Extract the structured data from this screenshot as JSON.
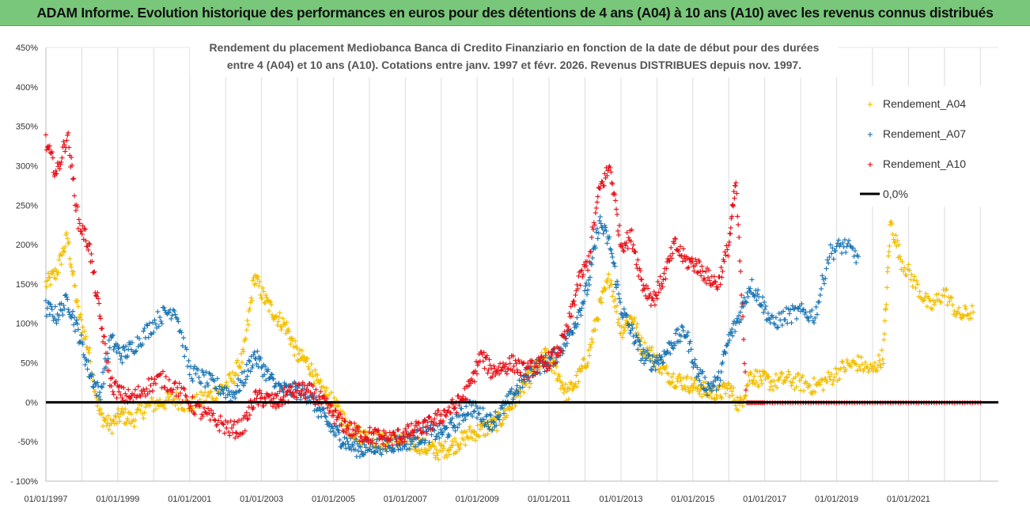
{
  "banner": {
    "title": "ADAM Informe. Evolution historique des performances en euros pour des détentions de 4 ans (A04) à 10 ans (A10) avec les revenus connus distribués"
  },
  "chart_data": {
    "type": "scatter",
    "subtitle_lines": [
      "Rendement du placement Mediobanca Banca di Credito Finanziario en fonction de la date de début pour des durées",
      "entre 4 (A04) et 10 ans (A10). Cotations entre janv. 1997 et févr. 2026. Revenus DISTRIBUES depuis nov. 1997."
    ],
    "x_tick_labels": [
      "01/01/1997",
      "01/01/1999",
      "01/01/2001",
      "01/01/2003",
      "01/01/2005",
      "01/01/2007",
      "01/01/2009",
      "01/01/2011",
      "01/01/2013",
      "01/01/2015",
      "01/01/2017",
      "01/01/2019",
      "01/01/2021"
    ],
    "x_range": [
      1997.0,
      2023.5
    ],
    "x_tick_years": [
      1997,
      1999,
      2001,
      2003,
      2005,
      2007,
      2009,
      2011,
      2013,
      2015,
      2017,
      2019,
      2021
    ],
    "y_tick_labels": [
      "450%",
      "400%",
      "350%",
      "300%",
      "250%",
      "200%",
      "150%",
      "100%",
      "50%",
      "0%",
      "-50%",
      "- 100%"
    ],
    "y_tick_values": [
      450,
      400,
      350,
      300,
      250,
      200,
      150,
      100,
      50,
      0,
      -50,
      -100
    ],
    "ylim": [
      -100,
      450
    ],
    "grid": "vertical yearly",
    "legend_position": "top-right",
    "marker_glyph": "+",
    "series": [
      {
        "name": "Rendement_A04",
        "color": "#f2be00",
        "points": [
          [
            1997.0,
            150
          ],
          [
            1997.3,
            165
          ],
          [
            1997.6,
            210
          ],
          [
            1997.9,
            115
          ],
          [
            1998.2,
            65
          ],
          [
            1998.5,
            -15
          ],
          [
            1998.8,
            -30
          ],
          [
            1999.1,
            -15
          ],
          [
            1999.4,
            -22
          ],
          [
            1999.8,
            -5
          ],
          [
            2000.2,
            0
          ],
          [
            2000.6,
            5
          ],
          [
            2001.0,
            -5
          ],
          [
            2001.4,
            5
          ],
          [
            2001.8,
            15
          ],
          [
            2002.2,
            30
          ],
          [
            2002.5,
            60
          ],
          [
            2002.8,
            160
          ],
          [
            2003.1,
            130
          ],
          [
            2003.4,
            110
          ],
          [
            2003.7,
            95
          ],
          [
            2004.0,
            60
          ],
          [
            2004.3,
            50
          ],
          [
            2004.6,
            20
          ],
          [
            2004.9,
            5
          ],
          [
            2005.2,
            -15
          ],
          [
            2005.5,
            -35
          ],
          [
            2005.8,
            -42
          ],
          [
            2006.1,
            -45
          ],
          [
            2006.4,
            -50
          ],
          [
            2006.7,
            -48
          ],
          [
            2007.0,
            -50
          ],
          [
            2007.3,
            -52
          ],
          [
            2007.6,
            -58
          ],
          [
            2007.9,
            -62
          ],
          [
            2008.2,
            -58
          ],
          [
            2008.5,
            -50
          ],
          [
            2008.8,
            -40
          ],
          [
            2009.1,
            -35
          ],
          [
            2009.4,
            -30
          ],
          [
            2009.7,
            -20
          ],
          [
            2010.0,
            0
          ],
          [
            2010.3,
            20
          ],
          [
            2010.6,
            40
          ],
          [
            2010.9,
            60
          ],
          [
            2011.2,
            40
          ],
          [
            2011.5,
            10
          ],
          [
            2011.8,
            30
          ],
          [
            2012.1,
            60
          ],
          [
            2012.4,
            120
          ],
          [
            2012.7,
            160
          ],
          [
            2013.0,
            90
          ],
          [
            2013.3,
            110
          ],
          [
            2013.6,
            70
          ],
          [
            2013.9,
            60
          ],
          [
            2014.2,
            40
          ],
          [
            2014.5,
            30
          ],
          [
            2014.8,
            25
          ],
          [
            2015.1,
            20
          ],
          [
            2015.4,
            15
          ],
          [
            2015.7,
            10
          ],
          [
            2016.0,
            20
          ],
          [
            2016.3,
            -5
          ],
          [
            2016.6,
            35
          ],
          [
            2016.9,
            30
          ],
          [
            2017.2,
            25
          ],
          [
            2017.6,
            30
          ],
          [
            2018.0,
            25
          ],
          [
            2018.4,
            20
          ],
          [
            2018.8,
            30
          ],
          [
            2019.2,
            45
          ],
          [
            2019.6,
            50
          ],
          [
            2020.0,
            40
          ],
          [
            2020.3,
            60
          ],
          [
            2020.5,
            230
          ],
          [
            2020.8,
            180
          ],
          [
            2021.2,
            150
          ],
          [
            2021.6,
            120
          ],
          [
            2022.0,
            140
          ],
          [
            2022.4,
            110
          ],
          [
            2022.8,
            115
          ]
        ]
      },
      {
        "name": "Rendement_A07",
        "color": "#1f77b4",
        "points": [
          [
            1997.0,
            120
          ],
          [
            1997.3,
            110
          ],
          [
            1997.6,
            130
          ],
          [
            1997.9,
            90
          ],
          [
            1998.2,
            40
          ],
          [
            1998.5,
            10
          ],
          [
            1998.8,
            80
          ],
          [
            1999.1,
            60
          ],
          [
            1999.4,
            70
          ],
          [
            1999.8,
            90
          ],
          [
            2000.2,
            110
          ],
          [
            2000.6,
            120
          ],
          [
            2001.0,
            40
          ],
          [
            2001.4,
            30
          ],
          [
            2001.8,
            20
          ],
          [
            2002.2,
            10
          ],
          [
            2002.5,
            30
          ],
          [
            2002.8,
            60
          ],
          [
            2003.1,
            40
          ],
          [
            2003.4,
            20
          ],
          [
            2003.7,
            15
          ],
          [
            2004.0,
            15
          ],
          [
            2004.3,
            10
          ],
          [
            2004.6,
            -10
          ],
          [
            2004.9,
            -30
          ],
          [
            2005.2,
            -45
          ],
          [
            2005.5,
            -55
          ],
          [
            2005.8,
            -60
          ],
          [
            2006.1,
            -55
          ],
          [
            2006.4,
            -55
          ],
          [
            2006.7,
            -52
          ],
          [
            2007.0,
            -50
          ],
          [
            2007.3,
            -45
          ],
          [
            2007.6,
            -40
          ],
          [
            2007.9,
            -38
          ],
          [
            2008.2,
            -35
          ],
          [
            2008.5,
            -20
          ],
          [
            2008.8,
            -5
          ],
          [
            2009.1,
            -15
          ],
          [
            2009.4,
            -25
          ],
          [
            2009.7,
            -10
          ],
          [
            2010.0,
            10
          ],
          [
            2010.3,
            30
          ],
          [
            2010.6,
            45
          ],
          [
            2010.9,
            50
          ],
          [
            2011.2,
            60
          ],
          [
            2011.5,
            80
          ],
          [
            2011.8,
            110
          ],
          [
            2012.1,
            150
          ],
          [
            2012.4,
            230
          ],
          [
            2012.7,
            200
          ],
          [
            2013.0,
            120
          ],
          [
            2013.3,
            90
          ],
          [
            2013.6,
            60
          ],
          [
            2013.9,
            50
          ],
          [
            2014.2,
            60
          ],
          [
            2014.5,
            80
          ],
          [
            2014.8,
            90
          ],
          [
            2015.1,
            40
          ],
          [
            2015.4,
            20
          ],
          [
            2015.7,
            25
          ],
          [
            2016.0,
            80
          ],
          [
            2016.3,
            110
          ],
          [
            2016.6,
            150
          ],
          [
            2016.9,
            130
          ],
          [
            2017.2,
            100
          ],
          [
            2017.6,
            110
          ],
          [
            2018.0,
            115
          ],
          [
            2018.4,
            110
          ],
          [
            2018.8,
            190
          ],
          [
            2019.2,
            200
          ],
          [
            2019.6,
            185
          ]
        ]
      },
      {
        "name": "Rendement_A10",
        "color": "#e8121a",
        "points": [
          [
            1997.0,
            330
          ],
          [
            1997.3,
            290
          ],
          [
            1997.6,
            340
          ],
          [
            1997.9,
            230
          ],
          [
            1998.2,
            200
          ],
          [
            1998.5,
            110
          ],
          [
            1998.8,
            25
          ],
          [
            1999.1,
            10
          ],
          [
            1999.4,
            5
          ],
          [
            1999.8,
            20
          ],
          [
            2000.2,
            30
          ],
          [
            2000.6,
            20
          ],
          [
            2001.0,
            0
          ],
          [
            2001.4,
            -15
          ],
          [
            2001.8,
            -25
          ],
          [
            2002.2,
            -35
          ],
          [
            2002.5,
            -30
          ],
          [
            2002.8,
            5
          ],
          [
            2003.1,
            5
          ],
          [
            2003.4,
            0
          ],
          [
            2003.7,
            10
          ],
          [
            2004.0,
            15
          ],
          [
            2004.3,
            15
          ],
          [
            2004.6,
            5
          ],
          [
            2004.9,
            -10
          ],
          [
            2005.2,
            -25
          ],
          [
            2005.5,
            -35
          ],
          [
            2005.8,
            -40
          ],
          [
            2006.1,
            -42
          ],
          [
            2006.4,
            -45
          ],
          [
            2006.7,
            -45
          ],
          [
            2007.0,
            -40
          ],
          [
            2007.3,
            -35
          ],
          [
            2007.6,
            -30
          ],
          [
            2007.9,
            -20
          ],
          [
            2008.2,
            -10
          ],
          [
            2008.5,
            0
          ],
          [
            2008.8,
            20
          ],
          [
            2009.1,
            60
          ],
          [
            2009.4,
            40
          ],
          [
            2009.7,
            45
          ],
          [
            2010.0,
            50
          ],
          [
            2010.3,
            40
          ],
          [
            2010.6,
            45
          ],
          [
            2010.9,
            50
          ],
          [
            2011.2,
            60
          ],
          [
            2011.5,
            90
          ],
          [
            2011.8,
            150
          ],
          [
            2012.1,
            180
          ],
          [
            2012.4,
            270
          ],
          [
            2012.7,
            300
          ],
          [
            2013.0,
            200
          ],
          [
            2013.3,
            210
          ],
          [
            2013.6,
            150
          ],
          [
            2013.9,
            130
          ],
          [
            2014.2,
            160
          ],
          [
            2014.5,
            200
          ],
          [
            2014.8,
            180
          ],
          [
            2015.1,
            175
          ],
          [
            2015.4,
            160
          ],
          [
            2015.7,
            150
          ],
          [
            2016.0,
            200
          ],
          [
            2016.2,
            280
          ],
          [
            2016.5,
            0
          ],
          [
            2017.0,
            0
          ],
          [
            2018.0,
            0
          ],
          [
            2019.0,
            0
          ],
          [
            2020.0,
            0
          ],
          [
            2021.0,
            0
          ],
          [
            2022.0,
            0
          ],
          [
            2023.0,
            0
          ]
        ]
      }
    ],
    "zero_line": {
      "name": "0,0%",
      "value": 0,
      "color": "#000000"
    }
  }
}
